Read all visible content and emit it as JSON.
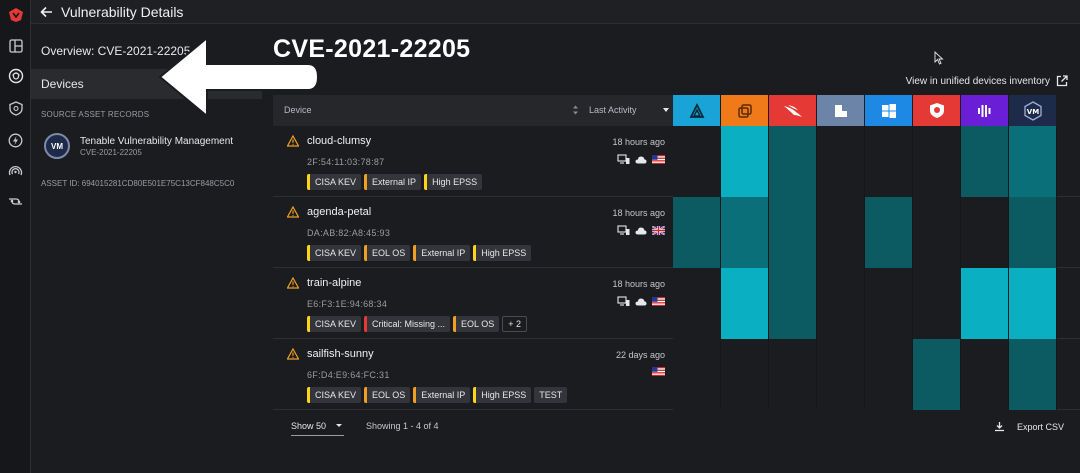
{
  "topbar": {
    "title": "Vulnerability Details"
  },
  "left_panel": {
    "overview": "Overview: CVE-2021-22205",
    "devices_label": "Devices",
    "section_label": "SOURCE ASSET RECORDS",
    "source": {
      "badge": "VM",
      "title": "Tenable Vulnerability Management",
      "subtitle": "CVE-2021-22205"
    },
    "asset_id": "ASSET ID: 694015281CD80E501E75C13CF848C5C0"
  },
  "main": {
    "cve_title": "CVE-2021-22205",
    "view_link": "View in unified devices inventory",
    "columns": {
      "device": "Device",
      "last_activity": "Last Activity"
    },
    "sources": [
      {
        "icon": "triangle-a-logo-icon",
        "color": "#1aa3d6"
      },
      {
        "icon": "stack-logo-icon",
        "color": "#f07a1a"
      },
      {
        "icon": "falcon-logo-icon",
        "color": "#e53935"
      },
      {
        "icon": "square-app-logo-icon",
        "color": "#6b84a8"
      },
      {
        "icon": "windows-logo-icon",
        "color": "#1e88e5"
      },
      {
        "icon": "shield-logo-icon",
        "color": "#e53935"
      },
      {
        "icon": "bars-logo-icon",
        "color": "#6a1fd6"
      },
      {
        "icon": "vm-logo-icon",
        "color": "#1d2a4a"
      }
    ],
    "rows": [
      {
        "name": "cloud-clumsy",
        "mac": "2F:54:11:03:78:87",
        "time": "18 hours ago",
        "flag": "us-flag-icon",
        "tags": [
          {
            "label": "CISA KEV",
            "color": "#ffd31a"
          },
          {
            "label": "External IP",
            "color": "#f0a020"
          },
          {
            "label": "High EPSS",
            "color": "#ffd31a"
          }
        ],
        "cells": [
          "none",
          "bright",
          "dark",
          "none",
          "none",
          "none",
          "dark",
          "mid"
        ]
      },
      {
        "name": "agenda-petal",
        "mac": "DA:AB:82:A8:45:93",
        "time": "18 hours ago",
        "flag": "uk-flag-icon",
        "tags": [
          {
            "label": "CISA KEV",
            "color": "#ffd31a"
          },
          {
            "label": "EOL OS",
            "color": "#f0a020"
          },
          {
            "label": "External IP",
            "color": "#f0a020"
          },
          {
            "label": "High EPSS",
            "color": "#ffd31a"
          }
        ],
        "cells": [
          "dark",
          "mid",
          "dark",
          "none",
          "dark",
          "none",
          "none",
          "dark"
        ]
      },
      {
        "name": "train-alpine",
        "mac": "E6:F3:1E:94:68:34",
        "time": "18 hours ago",
        "flag": "us-flag-icon",
        "tags": [
          {
            "label": "CISA KEV",
            "color": "#ffd31a"
          },
          {
            "label": "Critical: Missing ...",
            "color": "#e53935"
          },
          {
            "label": "EOL OS",
            "color": "#f0a020"
          }
        ],
        "more": "+ 2",
        "cells": [
          "none",
          "bright",
          "dark",
          "none",
          "none",
          "none",
          "bright",
          "bright"
        ]
      },
      {
        "name": "sailfish-sunny",
        "mac": "6F:D4:E9:64:FC:31",
        "time": "22 days ago",
        "flag": "us-flag-icon",
        "tags": [
          {
            "label": "CISA KEV",
            "color": "#ffd31a"
          },
          {
            "label": "EOL OS",
            "color": "#f0a020"
          },
          {
            "label": "External IP",
            "color": "#f0a020"
          },
          {
            "label": "High EPSS",
            "color": "#ffd31a"
          },
          {
            "label": "TEST",
            "color": ""
          }
        ],
        "cells": [
          "none",
          "none",
          "none",
          "none",
          "none",
          "dark",
          "none",
          "dark"
        ]
      }
    ],
    "footer": {
      "show": "Show 50",
      "showing": "Showing 1 - 4 of 4",
      "export": "Export CSV"
    }
  }
}
